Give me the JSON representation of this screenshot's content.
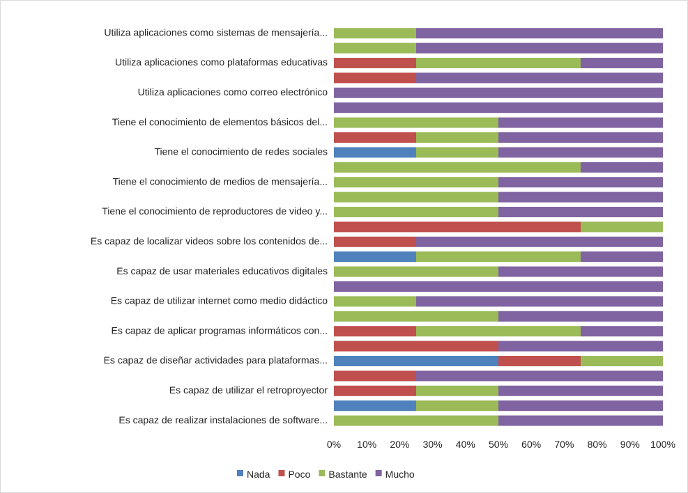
{
  "chart_data": {
    "type": "bar",
    "orientation": "horizontal",
    "stacked": "percent",
    "grid": false,
    "legend_position": "bottom",
    "xlim": [
      0,
      100
    ],
    "x_ticks": [
      "0%",
      "10%",
      "20%",
      "30%",
      "40%",
      "50%",
      "60%",
      "70%",
      "80%",
      "90%",
      "100%"
    ],
    "category_labels": [
      {
        "text": "Utiliza aplicaciones como sistemas de mensajería...",
        "row": 0
      },
      {
        "text": "Utiliza aplicaciones como plataformas educativas",
        "row": 2
      },
      {
        "text": "Utiliza aplicaciones como correo electrónico",
        "row": 4
      },
      {
        "text": "Tiene el conocimiento de elementos básicos del...",
        "row": 6
      },
      {
        "text": "Tiene el conocimiento de redes sociales",
        "row": 8
      },
      {
        "text": "Tiene el conocimiento de medios de mensajería...",
        "row": 10
      },
      {
        "text": "Tiene el conocimiento de reproductores de video y...",
        "row": 12
      },
      {
        "text": "Es capaz de localizar videos sobre los contenidos de...",
        "row": 14
      },
      {
        "text": "Es capaz de usar materiales educativos digitales",
        "row": 16
      },
      {
        "text": "Es capaz de utilizar internet como medio didáctico",
        "row": 18
      },
      {
        "text": "Es capaz de aplicar programas informáticos con...",
        "row": 20
      },
      {
        "text": "Es capaz de diseñar actividades para plataformas...",
        "row": 22
      },
      {
        "text": "Es capaz de utilizar el retroproyector",
        "row": 24
      },
      {
        "text": "Es capaz de realizar instalaciones de software...",
        "row": 26
      }
    ],
    "series": [
      {
        "name": "Nada",
        "color": "#4F81BD"
      },
      {
        "name": "Poco",
        "color": "#C0504D"
      },
      {
        "name": "Bastante",
        "color": "#9BBB59"
      },
      {
        "name": "Mucho",
        "color": "#8064A2"
      }
    ],
    "rows": [
      [
        0,
        0,
        25,
        75
      ],
      [
        0,
        0,
        25,
        75
      ],
      [
        0,
        25,
        50,
        25
      ],
      [
        0,
        25,
        0,
        75
      ],
      [
        0,
        0,
        0,
        100
      ],
      [
        0,
        0,
        0,
        100
      ],
      [
        0,
        0,
        50,
        50
      ],
      [
        0,
        25,
        25,
        50
      ],
      [
        25,
        0,
        25,
        50
      ],
      [
        0,
        0,
        75,
        25
      ],
      [
        0,
        0,
        50,
        50
      ],
      [
        0,
        0,
        50,
        50
      ],
      [
        0,
        0,
        50,
        50
      ],
      [
        0,
        75,
        25,
        0
      ],
      [
        0,
        25,
        0,
        75
      ],
      [
        25,
        0,
        50,
        25
      ],
      [
        0,
        0,
        50,
        50
      ],
      [
        0,
        0,
        0,
        100
      ],
      [
        0,
        0,
        25,
        75
      ],
      [
        0,
        0,
        50,
        50
      ],
      [
        0,
        25,
        50,
        25
      ],
      [
        0,
        50,
        0,
        50
      ],
      [
        50,
        25,
        25,
        0
      ],
      [
        0,
        25,
        0,
        75
      ],
      [
        0,
        25,
        25,
        50
      ],
      [
        25,
        0,
        25,
        50
      ],
      [
        0,
        0,
        50,
        50
      ]
    ]
  }
}
